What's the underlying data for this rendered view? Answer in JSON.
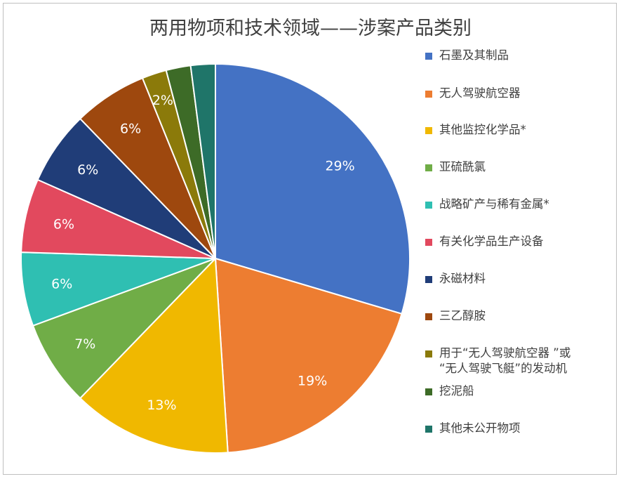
{
  "chart_data": {
    "type": "pie",
    "title": "两用物项和技术领域——涉案产品类别",
    "categories": [
      "石墨及其制品",
      "无人驾驶航空器",
      "其他监控化学品*",
      "亚硫酰氯",
      "战略矿产与稀有金属*",
      "有关化学品生产设备",
      "永磁材料",
      "三乙醇胺",
      "用于“无人驾驶航空器 ”或\n“无人驾驶飞艇”的发动机",
      "挖泥船",
      "其他未公开物项"
    ],
    "values": [
      29,
      19,
      13,
      7,
      6,
      6,
      6,
      6,
      2,
      2,
      2
    ],
    "data_labels": [
      "29%",
      "19%",
      "13%",
      "7%",
      "6%",
      "6%",
      "6%",
      "6%",
      "2%",
      "",
      ""
    ],
    "colors": [
      "#4472C4",
      "#ED7D31",
      "#F0B800",
      "#70AD47",
      "#2FBFB2",
      "#E2495E",
      "#203D78",
      "#9E480E",
      "#8B7A0A",
      "#3D6B27",
      "#1F7569"
    ],
    "legend_position": "right"
  }
}
